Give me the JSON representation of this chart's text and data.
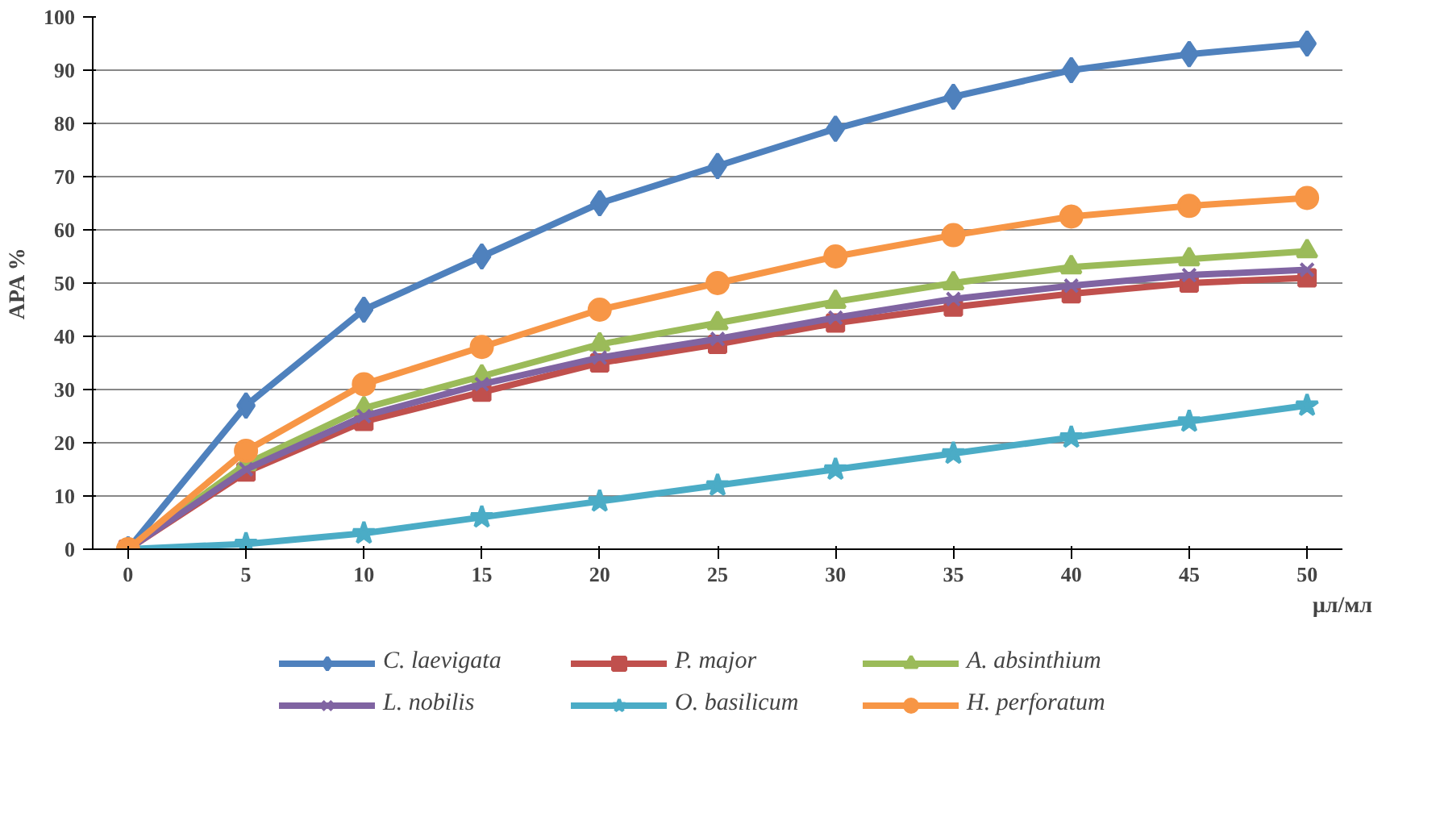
{
  "chart_data": {
    "type": "line",
    "ylabel": "APA %",
    "xlabel": "μл/мл",
    "x": [
      0,
      5,
      10,
      15,
      20,
      25,
      30,
      35,
      40,
      45,
      50
    ],
    "xlim": [
      -1.5,
      51.5
    ],
    "xticks": [
      0,
      5,
      10,
      15,
      20,
      25,
      30,
      35,
      40,
      45,
      50
    ],
    "ylim": [
      0,
      100
    ],
    "yticks": [
      0,
      10,
      20,
      30,
      40,
      50,
      60,
      70,
      80,
      90,
      100
    ],
    "grid": "y",
    "legend": "bottom",
    "line_style": "solid",
    "series": [
      {
        "name": "C. laevigata",
        "color": "#4f81bd",
        "marker": "diamond",
        "values": [
          0,
          27,
          45,
          55,
          65,
          72,
          79,
          85,
          90,
          93,
          95
        ]
      },
      {
        "name": "P. major",
        "color": "#c0504d",
        "marker": "square",
        "values": [
          0,
          14.5,
          24,
          29.5,
          35,
          38.5,
          42.5,
          45.5,
          48,
          50,
          51
        ]
      },
      {
        "name": "A. absinthium",
        "color": "#9bbb59",
        "marker": "triangle",
        "values": [
          0,
          16,
          26.5,
          32.5,
          38.5,
          42.5,
          46.5,
          50,
          53,
          54.5,
          56
        ]
      },
      {
        "name": "L. nobilis",
        "color": "#8064a2",
        "marker": "cross",
        "values": [
          0,
          15,
          25,
          31,
          36,
          39.5,
          43.5,
          47,
          49.5,
          51.5,
          52.5
        ]
      },
      {
        "name": "O. basilicum",
        "color": "#4bacc6",
        "marker": "star",
        "values": [
          0,
          1,
          3,
          6,
          9,
          12,
          15,
          18,
          21,
          24,
          27
        ]
      },
      {
        "name": "H. perforatum",
        "color": "#f79646",
        "marker": "circle",
        "values": [
          0,
          18.5,
          31,
          38,
          45,
          50,
          55,
          59,
          62.5,
          64.5,
          66
        ]
      }
    ]
  }
}
